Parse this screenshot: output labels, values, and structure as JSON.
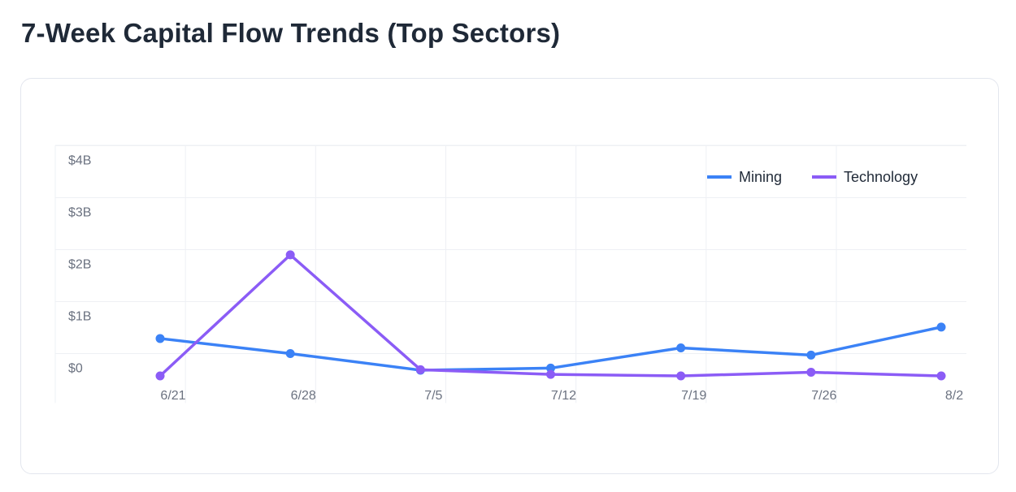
{
  "page": {
    "title": "7-Week Capital Flow Trends (Top Sectors)"
  },
  "chart_data": {
    "type": "line",
    "title": "7-Week Capital Flow Trends (Top Sectors)",
    "xlabel": "",
    "ylabel": "",
    "categories": [
      "6/21",
      "6/28",
      "7/5",
      "7/12",
      "7/19",
      "7/26",
      "8/2"
    ],
    "yticks": [
      {
        "value": 0,
        "label": "$0"
      },
      {
        "value": 1,
        "label": "$1B"
      },
      {
        "value": 2,
        "label": "$2B"
      },
      {
        "value": 3,
        "label": "$3B"
      },
      {
        "value": 4,
        "label": "$4B"
      }
    ],
    "ylim": [
      -0.42,
      4.3
    ],
    "grid": true,
    "legend_position": "top-right",
    "series": [
      {
        "name": "Mining",
        "color": "#3b82f6",
        "values": [
          0.29,
          0.0,
          -0.32,
          -0.28,
          0.11,
          -0.03,
          0.51
        ]
      },
      {
        "name": "Technology",
        "color": "#8b5cf6",
        "values": [
          -0.43,
          1.9,
          -0.31,
          -0.4,
          -0.43,
          -0.36,
          -0.43
        ]
      }
    ]
  }
}
